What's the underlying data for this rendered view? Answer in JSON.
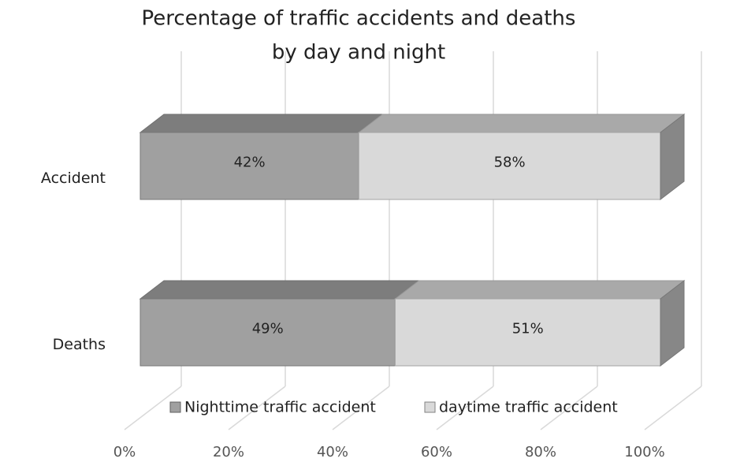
{
  "chart_data": {
    "type": "bar3d_stacked_horizontal",
    "title": [
      "Percentage of traffic accidents and deaths",
      "by day and night"
    ],
    "categories": [
      "Accident",
      "Deaths"
    ],
    "series": [
      {
        "name": "Nighttime traffic accident",
        "color": "#a0a0a0",
        "values": [
          42,
          49
        ],
        "value_labels": [
          "42%",
          "49%"
        ]
      },
      {
        "name": "daytime traffic accident",
        "color": "#d9d9d9",
        "values": [
          58,
          51
        ],
        "value_labels": [
          "58%",
          "51%"
        ]
      }
    ],
    "xlim": [
      0,
      100
    ],
    "xticks": [
      {
        "value": 0,
        "label": "0%"
      },
      {
        "value": 20,
        "label": "20%"
      },
      {
        "value": 40,
        "label": "40%"
      },
      {
        "value": 60,
        "label": "60%"
      },
      {
        "value": 80,
        "label": "80%"
      },
      {
        "value": 100,
        "label": "100%"
      }
    ],
    "grid": true,
    "legend": "bottom"
  }
}
